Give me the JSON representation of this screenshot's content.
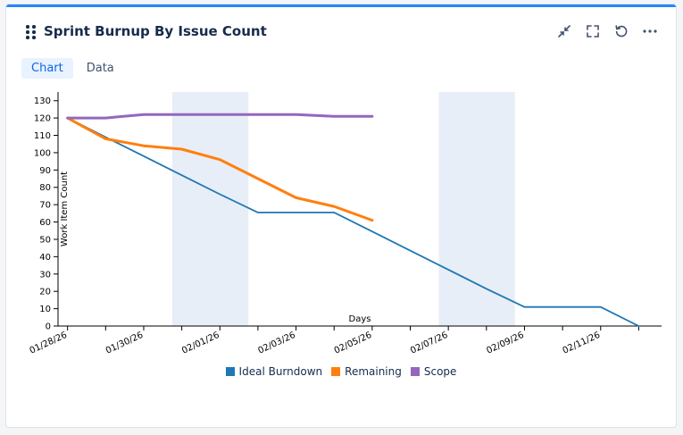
{
  "header": {
    "title": "Sprint Burnup By Issue Count",
    "actions": [
      {
        "name": "collapse-button",
        "icon": "collapse-icon"
      },
      {
        "name": "fullscreen-button",
        "icon": "fullscreen-icon"
      },
      {
        "name": "refresh-button",
        "icon": "refresh-icon"
      },
      {
        "name": "more-button",
        "icon": "more-icon"
      }
    ]
  },
  "tabs": [
    {
      "label": "Chart",
      "active": true
    },
    {
      "label": "Data",
      "active": false
    }
  ],
  "colors": {
    "ideal": "#1f77b4",
    "remaining": "#ff7f0e",
    "scope": "#9467bd",
    "weekend": "#e8eef7",
    "accent": "#2684ff"
  },
  "chart_data": {
    "type": "line",
    "xlabel": "Days",
    "ylabel": "Work Item Count",
    "ylim": [
      0,
      135
    ],
    "yticks": [
      0,
      10,
      20,
      30,
      40,
      50,
      60,
      70,
      80,
      90,
      100,
      110,
      120,
      130
    ],
    "x_tick_labels": [
      "01/28/26",
      "01/30/26",
      "02/01/26",
      "02/03/26",
      "02/05/26",
      "02/07/26",
      "02/09/26",
      "02/11/26"
    ],
    "x_tick_days": [
      0,
      2,
      4,
      6,
      8,
      10,
      12,
      14
    ],
    "xlim_days": [
      -0.25,
      15.6
    ],
    "weekends": [
      [
        2.75,
        4.75
      ],
      [
        9.75,
        11.75
      ]
    ],
    "legend_position": "bottom",
    "series": [
      {
        "name": "Ideal Burndown",
        "color_key": "ideal",
        "x_days": [
          0,
          1,
          2,
          3,
          4,
          5,
          6,
          7,
          8,
          9,
          10,
          11,
          12,
          13,
          14,
          15
        ],
        "values": [
          120,
          109,
          98,
          87,
          76,
          65.5,
          65.5,
          65.5,
          54.5,
          43.5,
          32.5,
          21.5,
          11,
          11,
          11,
          0
        ]
      },
      {
        "name": "Remaining",
        "color_key": "remaining",
        "x_days": [
          0,
          1,
          2,
          3,
          4,
          5,
          6,
          7,
          8
        ],
        "values": [
          120,
          108,
          104,
          102,
          96,
          85,
          74,
          69,
          61
        ]
      },
      {
        "name": "Scope",
        "color_key": "scope",
        "x_days": [
          0,
          1,
          2,
          3,
          4,
          5,
          6,
          7,
          8
        ],
        "values": [
          120,
          120,
          122,
          122,
          122,
          122,
          122,
          121,
          121
        ]
      }
    ]
  }
}
